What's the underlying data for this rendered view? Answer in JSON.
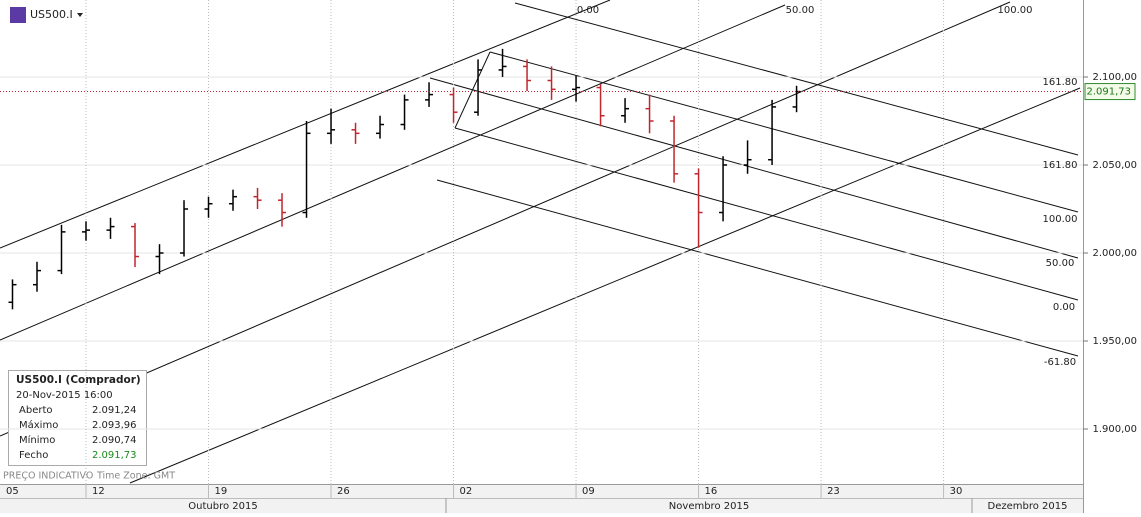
{
  "chart_data": {
    "type": "ohlc",
    "symbol": "US500.I",
    "categories": [
      null,
      null,
      null,
      null,
      null,
      null,
      null,
      null,
      null,
      null,
      null,
      null,
      null,
      null,
      null,
      null,
      null,
      null,
      null,
      null,
      null,
      null,
      null,
      null,
      null,
      null,
      null,
      null,
      null,
      null,
      null,
      null,
      null
    ],
    "open": [
      1972,
      1982,
      1990,
      2012,
      2013,
      2015,
      1998,
      2000,
      2025,
      2028,
      2032,
      2030,
      2023,
      2068,
      2070,
      2068,
      2073,
      2087,
      2090,
      2080,
      2104,
      2106,
      2098,
      2093,
      2094,
      2078,
      2082,
      2075,
      2045,
      2023,
      2050,
      2053,
      2083
    ],
    "high": [
      1985,
      1995,
      2016,
      2018,
      2020,
      2017,
      2005,
      2030,
      2032,
      2036,
      2037,
      2034,
      2075,
      2082,
      2074,
      2078,
      2090,
      2097,
      2094,
      2110,
      2116,
      2110,
      2106,
      2101,
      2096,
      2088,
      2090,
      2078,
      2048,
      2055,
      2064,
      2087,
      2095
    ],
    "low": [
      1968,
      1978,
      1988,
      2007,
      2008,
      1992,
      1988,
      1998,
      2020,
      2024,
      2025,
      2015,
      2020,
      2062,
      2062,
      2065,
      2070,
      2083,
      2074,
      2078,
      2100,
      2092,
      2087,
      2086,
      2072,
      2074,
      2068,
      2040,
      2003,
      2018,
      2045,
      2050,
      2080
    ],
    "close": [
      1982,
      1990,
      2012,
      2013,
      2015,
      1998,
      2000,
      2025,
      2028,
      2032,
      2030,
      2023,
      2068,
      2070,
      2068,
      2073,
      2087,
      2090,
      2080,
      2104,
      2106,
      2098,
      2093,
      2094,
      2078,
      2082,
      2075,
      2045,
      2023,
      2050,
      2053,
      2083,
      2091.73
    ],
    "up_color": "#000000",
    "down_color": "#c0262d",
    "xlim": [
      -0.51,
      43.69
    ],
    "xticks": [
      {
        "value": -2,
        "label": "05"
      },
      {
        "value": 3,
        "label": "12"
      },
      {
        "value": 8,
        "label": "19"
      },
      {
        "value": 13,
        "label": "26"
      },
      {
        "value": 18,
        "label": "02"
      },
      {
        "value": 23,
        "label": "09"
      },
      {
        "value": 28,
        "label": "16"
      },
      {
        "value": 33,
        "label": "23"
      },
      {
        "value": 38,
        "label": "30"
      }
    ],
    "month_labels": [
      "Outubro 2015",
      "Novembro 2015",
      "Dezembro 2015"
    ],
    "ylim": [
      1868.75,
      2143.75
    ],
    "yticks": [
      {
        "value": 1900,
        "label": "1.900,00"
      },
      {
        "value": 1950,
        "label": "1.950,00"
      },
      {
        "value": 2000,
        "label": "2.000,00"
      },
      {
        "value": 2050,
        "label": "2.050,00"
      },
      {
        "value": 2100,
        "label": "2.100,00"
      }
    ],
    "current_price": {
      "value": 2091.73,
      "label": "2.091,73"
    },
    "level_labels": [
      "0.00",
      "50.00",
      "100.00",
      "161.80",
      "161.80",
      "100.00",
      "50.00",
      "0.00",
      "-61.80"
    ],
    "info": {
      "title": "US500.I (Comprador)",
      "date": "20-Nov-2015 16:00",
      "rows": [
        [
          "Aberto",
          "2.091,24"
        ],
        [
          "Máximo",
          "2.093,96"
        ],
        [
          "Mínimo",
          "2.090,74"
        ],
        [
          "Fecho",
          "2.091,73"
        ]
      ]
    },
    "footer": [
      "PREÇO INDICATIVO",
      "Time Zone: GMT"
    ]
  }
}
